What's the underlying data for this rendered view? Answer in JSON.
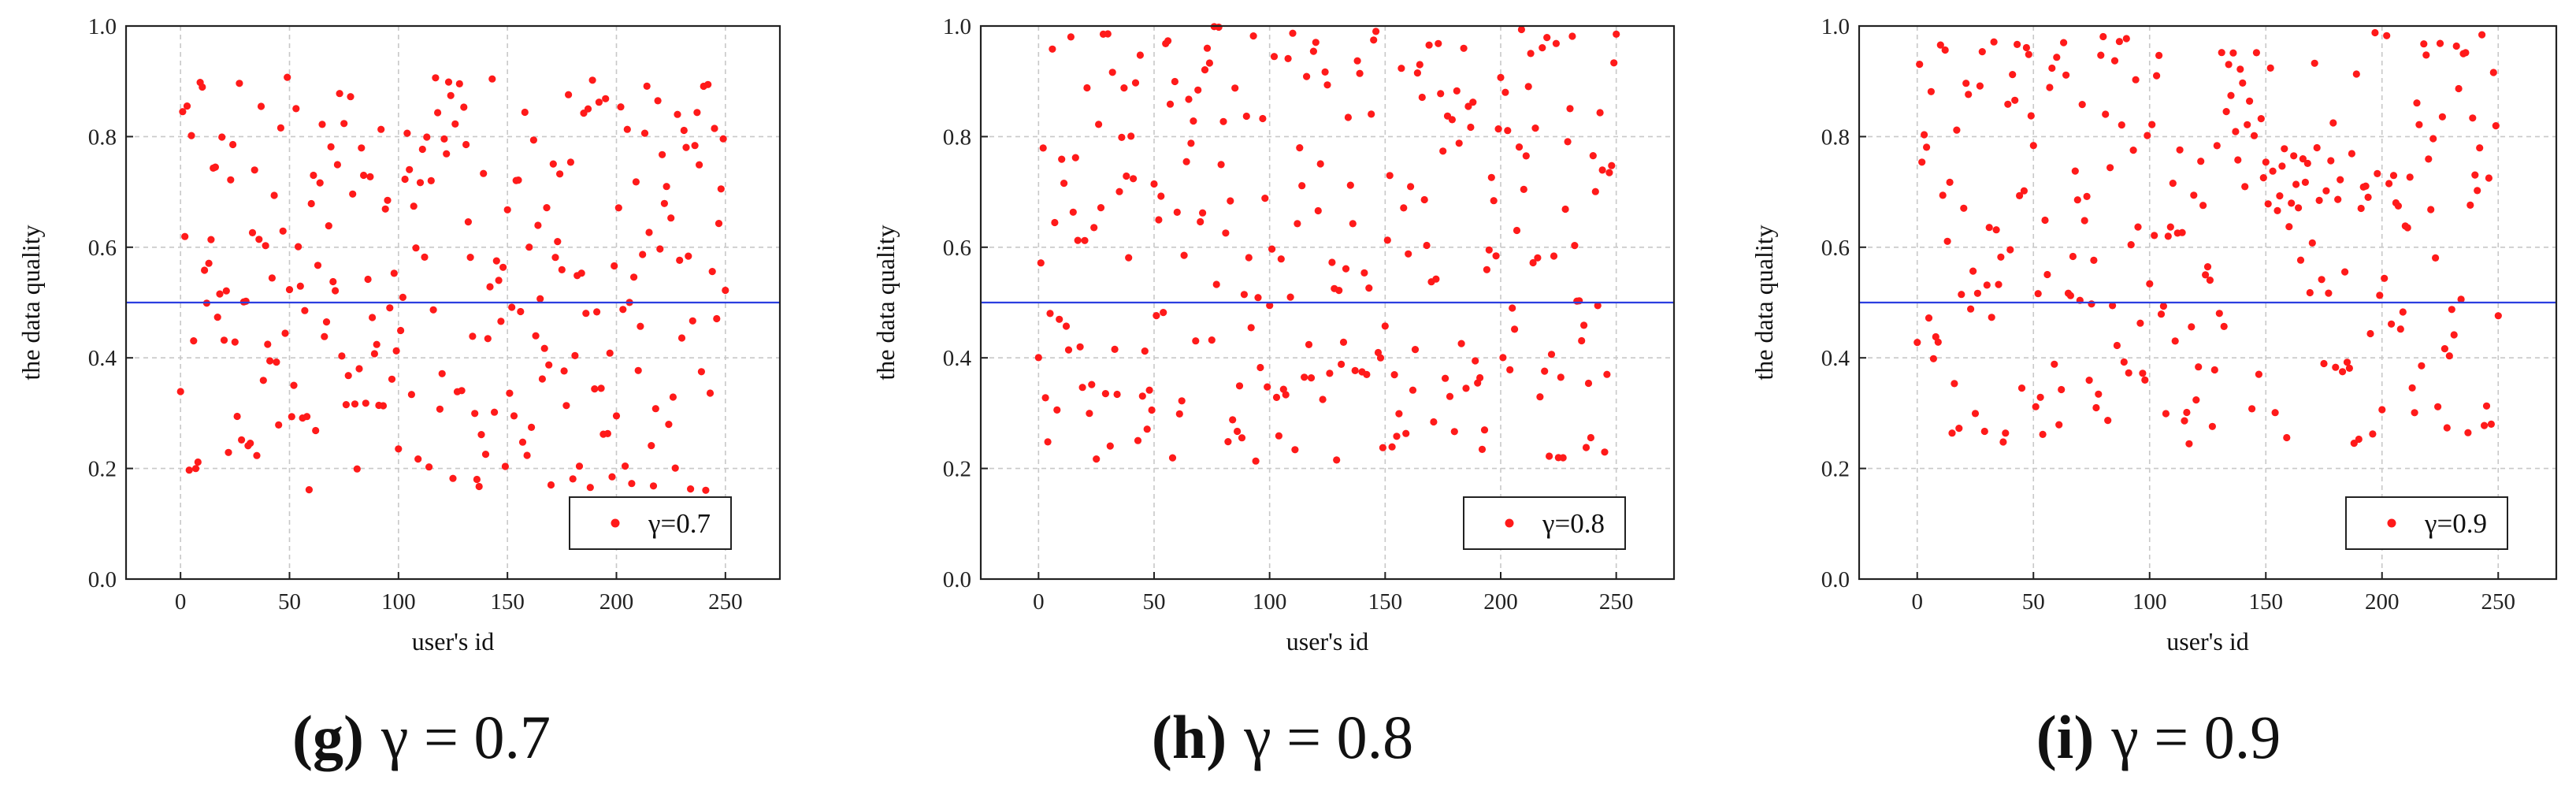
{
  "colors": {
    "point": "#ff1a1a",
    "threshold_line": "#2b3ee0",
    "frame": "#222222",
    "grid": "#c8c8c8"
  },
  "chart_data": [
    {
      "type": "scatter",
      "caption_letter": "(g)",
      "caption_text": "γ = 0.7",
      "legend_label": "γ=0.7",
      "xlabel": "user's id",
      "ylabel": "the data quality",
      "xlim": [
        -25,
        275
      ],
      "ylim": [
        0,
        1
      ],
      "xticks": [
        0,
        50,
        100,
        150,
        200,
        250
      ],
      "yticks": [
        "0.0",
        "0.2",
        "0.4",
        "0.6",
        "0.8",
        "1.0"
      ],
      "threshold": 0.5,
      "legend_position": "bottom-right",
      "grid": true,
      "seed": 7,
      "y_range": [
        0.16,
        0.91
      ],
      "n_points": 250
    },
    {
      "type": "scatter",
      "caption_letter": "(h)",
      "caption_text": "γ = 0.8",
      "legend_label": "γ=0.8",
      "xlabel": "user's id",
      "ylabel": "the data quality",
      "xlim": [
        -25,
        275
      ],
      "ylim": [
        0,
        1
      ],
      "xticks": [
        0,
        50,
        100,
        150,
        200,
        250
      ],
      "yticks": [
        "0.0",
        "0.2",
        "0.4",
        "0.6",
        "0.8",
        "1.0"
      ],
      "threshold": 0.5,
      "legend_position": "bottom-right",
      "grid": true,
      "seed": 13,
      "y_range": [
        0.21,
        1.0
      ],
      "n_points": 250
    },
    {
      "type": "scatter",
      "caption_letter": "(i)",
      "caption_text": "γ = 0.9",
      "legend_label": "γ=0.9",
      "xlabel": "user's id",
      "ylabel": "the data quality",
      "xlim": [
        -25,
        275
      ],
      "ylim": [
        0,
        1
      ],
      "xticks": [
        0,
        50,
        100,
        150,
        200,
        250
      ],
      "yticks": [
        "0.0",
        "0.2",
        "0.4",
        "0.6",
        "0.8",
        "1.0"
      ],
      "threshold": 0.5,
      "legend_position": "bottom-right",
      "grid": true,
      "seed": 29,
      "y_range": [
        0.24,
        1.0
      ],
      "n_points": 250
    }
  ]
}
